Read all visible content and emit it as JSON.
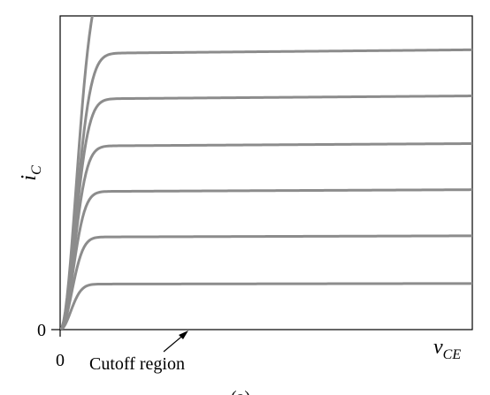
{
  "chart_data": {
    "type": "line",
    "title": "",
    "xlabel": {
      "main": "v",
      "sub": "CE"
    },
    "ylabel": {
      "main": "i",
      "sub": "C"
    },
    "x_tick_labels": [
      "0"
    ],
    "y_tick_labels": [
      "0"
    ],
    "annotation": "Cutoff region",
    "caption": "(a)",
    "xlim": [
      0,
      1
    ],
    "ylim": [
      0,
      1
    ],
    "grid": false,
    "legend": "none",
    "line_color": "#8c8c8c",
    "series": [
      {
        "level": 0.145,
        "slope": 0.002,
        "knee": 0.115
      },
      {
        "level": 0.295,
        "slope": 0.004,
        "knee": 0.125
      },
      {
        "level": 0.44,
        "slope": 0.006,
        "knee": 0.135
      },
      {
        "level": 0.585,
        "slope": 0.008,
        "knee": 0.145
      },
      {
        "level": 0.735,
        "slope": 0.01,
        "knee": 0.155
      },
      {
        "level": 0.88,
        "slope": 0.012,
        "knee": 0.165
      },
      {
        "level": 1.15,
        "slope": 0.014,
        "knee": 0.175
      }
    ]
  }
}
